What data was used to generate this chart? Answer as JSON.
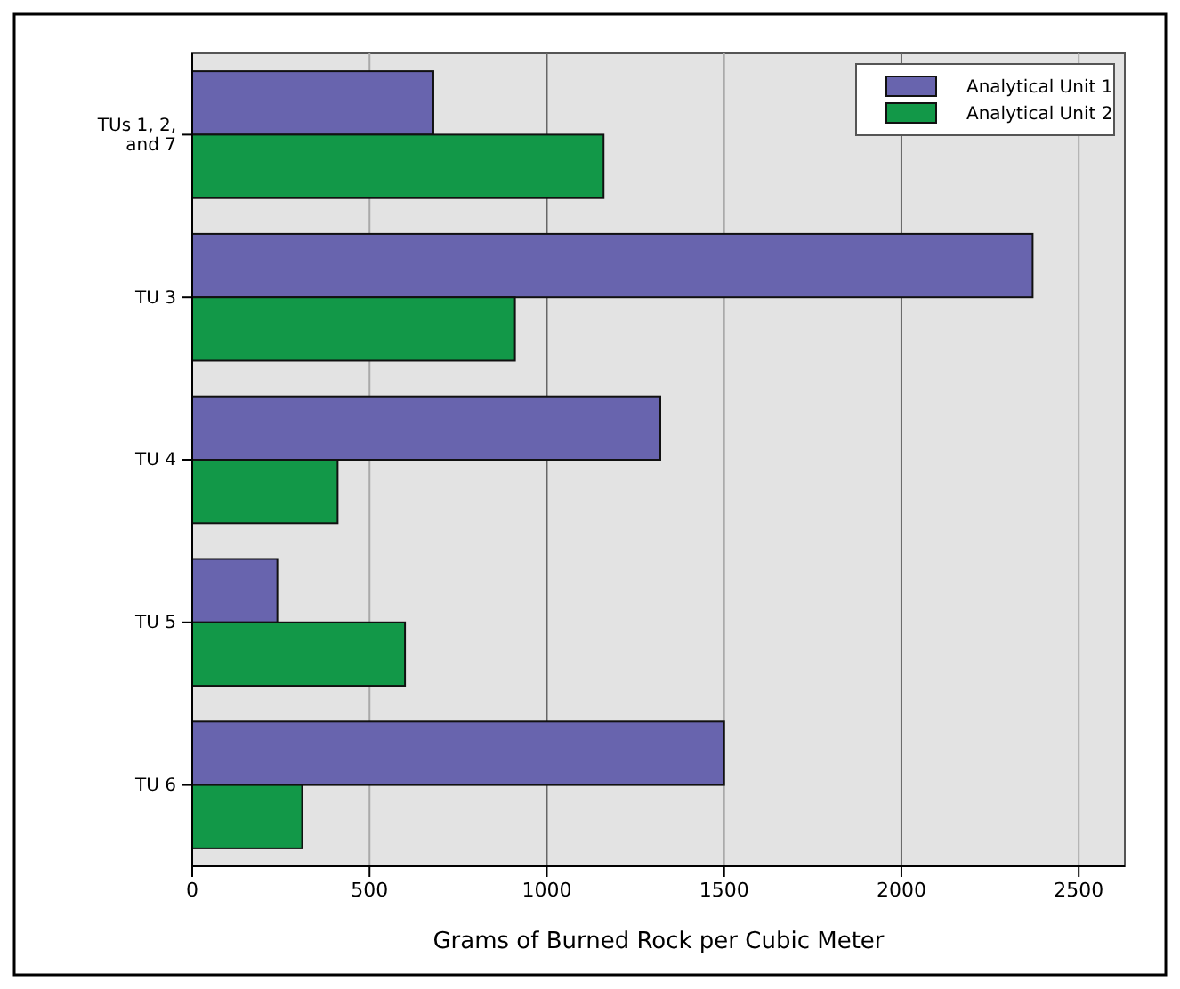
{
  "chart_data": {
    "type": "bar",
    "orientation": "horizontal",
    "xlabel": "Grams of Burned Rock per Cubic Meter",
    "categories": [
      "TUs 1, 2, and 7",
      "TU 3",
      "TU 4",
      "TU 5",
      "TU 6"
    ],
    "series": [
      {
        "name": "Analytical Unit 1",
        "color": "#6864ae",
        "values": [
          680,
          2370,
          1320,
          240,
          1500
        ]
      },
      {
        "name": "Analytical Unit 2",
        "color": "#129848",
        "values": [
          1160,
          910,
          410,
          600,
          310
        ]
      }
    ],
    "xlim": [
      0,
      2630
    ],
    "xticks": [
      0,
      500,
      1000,
      1500,
      2000,
      2500
    ],
    "grid": "x",
    "legend": "top right"
  }
}
